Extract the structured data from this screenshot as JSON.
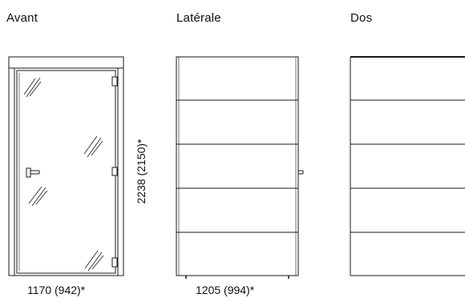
{
  "views": {
    "front": {
      "label": "Avant",
      "width_dim": "1170 (942)*"
    },
    "side": {
      "label": "Latérale",
      "width_dim": "1205 (994)*"
    },
    "back": {
      "label": "Dos"
    }
  },
  "height_dim": "2238 (2150)*",
  "colors": {
    "stroke": "#1a1a1a",
    "frame_fill": "#ffffff"
  },
  "side_panels": 5,
  "back_panels": 5
}
